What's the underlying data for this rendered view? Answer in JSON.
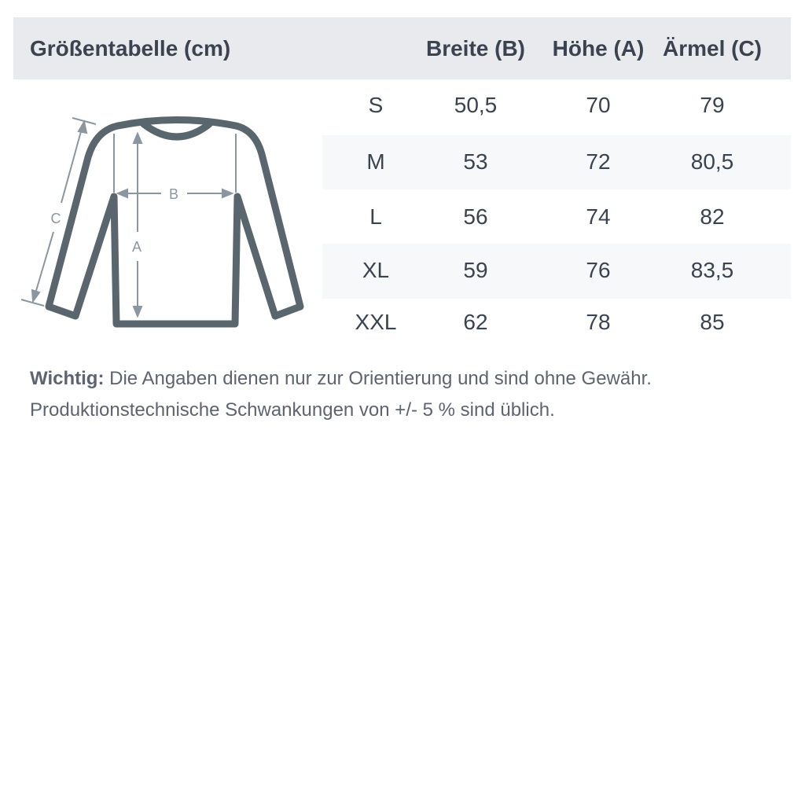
{
  "header": {
    "title": "Größentabelle (cm)",
    "columns": [
      "Breite (B)",
      "Höhe (A)",
      "Ärmel (C)"
    ]
  },
  "rows": [
    {
      "size": "S",
      "breite": "50,5",
      "hoehe": "70",
      "aermel": "79"
    },
    {
      "size": "M",
      "breite": "53",
      "hoehe": "72",
      "aermel": "80,5"
    },
    {
      "size": "L",
      "breite": "56",
      "hoehe": "74",
      "aermel": "82"
    },
    {
      "size": "XL",
      "breite": "59",
      "hoehe": "76",
      "aermel": "83,5"
    },
    {
      "size": "XXL",
      "breite": "62",
      "hoehe": "78",
      "aermel": "85"
    }
  ],
  "diagram": {
    "labels": {
      "a": "A",
      "b": "B",
      "c": "C"
    }
  },
  "note": {
    "label": "Wichtig:",
    "line1": " Die Angaben dienen nur zur Orientierung und sind ohne Gewähr.",
    "line2": "Produktionstechnische Schwankungen von +/- 5 % sind üblich."
  },
  "colors": {
    "header_bg": "#e9eaee",
    "stripe": "#f7f8fa",
    "outline": "#5a666d",
    "arrow": "#8a96a0",
    "text": "#3b4250"
  }
}
